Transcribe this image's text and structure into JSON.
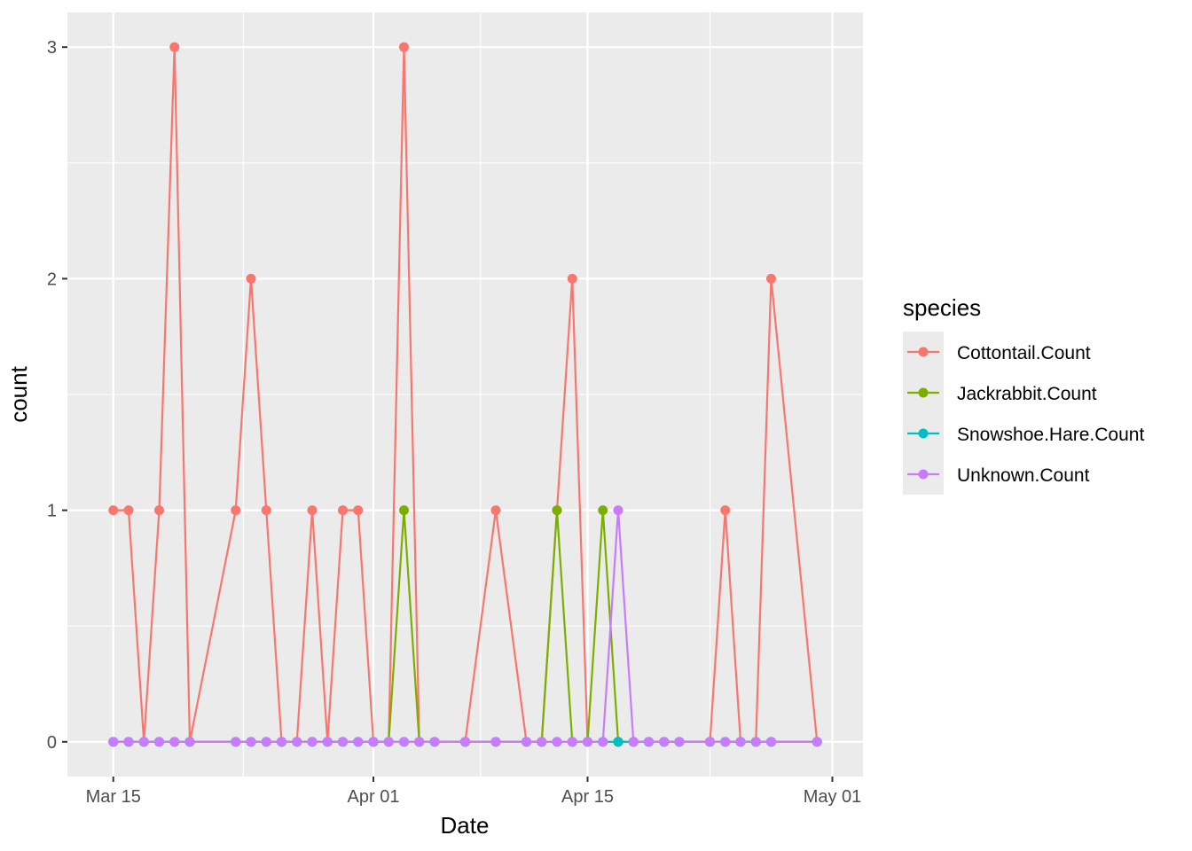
{
  "chart_data": {
    "type": "line",
    "xlabel": "Date",
    "ylabel": "count",
    "x_ticks": [
      "2024-03-15",
      "2024-04-01",
      "2024-04-15",
      "2024-05-01"
    ],
    "x_tick_labels": [
      "Mar 15",
      "Apr 01",
      "Apr 15",
      "May 01"
    ],
    "y_ticks": [
      0,
      1,
      2,
      3
    ],
    "y_tick_labels": [
      "0",
      "1",
      "2",
      "3"
    ],
    "xlim": [
      "2024-03-12",
      "2024-05-03"
    ],
    "ylim": [
      -0.15,
      3.15
    ],
    "grid": true,
    "legend_title": "species",
    "legend_position": "right",
    "x_dates": [
      "2024-03-15",
      "2024-03-16",
      "2024-03-17",
      "2024-03-18",
      "2024-03-19",
      "2024-03-20",
      "2024-03-23",
      "2024-03-24",
      "2024-03-25",
      "2024-03-26",
      "2024-03-27",
      "2024-03-28",
      "2024-03-29",
      "2024-03-30",
      "2024-03-31",
      "2024-04-01",
      "2024-04-02",
      "2024-04-03",
      "2024-04-04",
      "2024-04-05",
      "2024-04-07",
      "2024-04-09",
      "2024-04-11",
      "2024-04-12",
      "2024-04-13",
      "2024-04-14",
      "2024-04-15",
      "2024-04-16",
      "2024-04-17",
      "2024-04-18",
      "2024-04-19",
      "2024-04-20",
      "2024-04-21",
      "2024-04-23",
      "2024-04-24",
      "2024-04-25",
      "2024-04-26",
      "2024-04-27",
      "2024-04-30"
    ],
    "series": [
      {
        "name": "Cottontail.Count",
        "color": "#F8766D",
        "values": [
          1,
          1,
          0,
          1,
          3,
          0,
          1,
          2,
          1,
          0,
          0,
          1,
          0,
          1,
          1,
          0,
          0,
          3,
          0,
          0,
          0,
          1,
          0,
          0,
          1,
          2,
          0,
          0,
          0,
          0,
          0,
          0,
          0,
          0,
          1,
          0,
          0,
          2,
          0
        ]
      },
      {
        "name": "Jackrabbit.Count",
        "color": "#7CAE00",
        "values": [
          0,
          0,
          0,
          0,
          0,
          0,
          0,
          0,
          0,
          0,
          0,
          0,
          0,
          0,
          0,
          0,
          0,
          1,
          0,
          0,
          0,
          0,
          0,
          0,
          1,
          0,
          0,
          1,
          0,
          0,
          0,
          0,
          0,
          0,
          0,
          0,
          0,
          0,
          0
        ]
      },
      {
        "name": "Snowshoe.Hare.Count",
        "color": "#00BFC4",
        "values": [
          0,
          0,
          0,
          0,
          0,
          0,
          0,
          0,
          0,
          0,
          0,
          0,
          0,
          0,
          0,
          0,
          0,
          0,
          0,
          0,
          0,
          0,
          0,
          0,
          0,
          0,
          0,
          0,
          0,
          0,
          0,
          0,
          0,
          0,
          0,
          0,
          0,
          0,
          0
        ]
      },
      {
        "name": "Unknown.Count",
        "color": "#C77CFF",
        "values": [
          0,
          0,
          0,
          0,
          0,
          0,
          0,
          0,
          0,
          0,
          0,
          0,
          0,
          0,
          0,
          0,
          0,
          0,
          0,
          0,
          0,
          0,
          0,
          0,
          0,
          0,
          0,
          0,
          1,
          0,
          0,
          0,
          0,
          0,
          0,
          0,
          0,
          0,
          0
        ]
      }
    ],
    "panel_background": "#EBEBEB",
    "grid_color": "#FFFFFF"
  }
}
